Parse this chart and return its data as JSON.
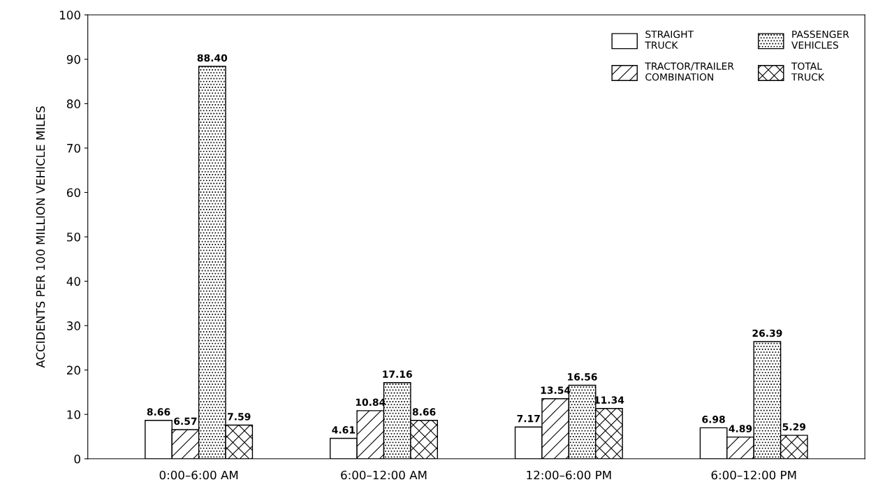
{
  "chart_data": {
    "type": "bar",
    "ylabel": "ACCIDENTS PER 100 MILLION VEHICLE MILES",
    "categories": [
      "0:00–6:00 AM",
      "6:00–12:00 AM",
      "12:00–6:00 PM",
      "6:00–12:00 PM"
    ],
    "series": [
      {
        "name": "STRAIGHT\nTRUCK",
        "color": "#ffffff",
        "values": [
          8.66,
          4.61,
          7.17,
          6.98
        ],
        "value_labels": [
          "8.66",
          "4.61",
          "7.17",
          "6.98"
        ]
      },
      {
        "name": "TRACTOR/TRAILER\nCOMBINATION",
        "color": "#000000",
        "values": [
          6.57,
          10.84,
          13.54,
          4.89
        ],
        "value_labels": [
          "6.57",
          "10.84",
          "13.54",
          "4.89"
        ]
      },
      {
        "name": "PASSENGER\nVEHICLES",
        "color": "#000000",
        "values": [
          88.4,
          17.16,
          16.56,
          26.39
        ],
        "value_labels": [
          "88.40",
          "17.16",
          "16.56",
          "26.39"
        ]
      },
      {
        "name": "TOTAL\nTRUCK",
        "color": "#000000",
        "values": [
          7.59,
          8.66,
          11.34,
          5.29
        ],
        "value_labels": [
          "7.59",
          "8.66",
          "11.34",
          "5.29"
        ]
      }
    ],
    "ylim": [
      0,
      100
    ],
    "yticks": [
      0,
      10,
      20,
      30,
      40,
      50,
      60,
      70,
      80,
      90,
      100
    ],
    "legend": "top right",
    "grid": false
  }
}
